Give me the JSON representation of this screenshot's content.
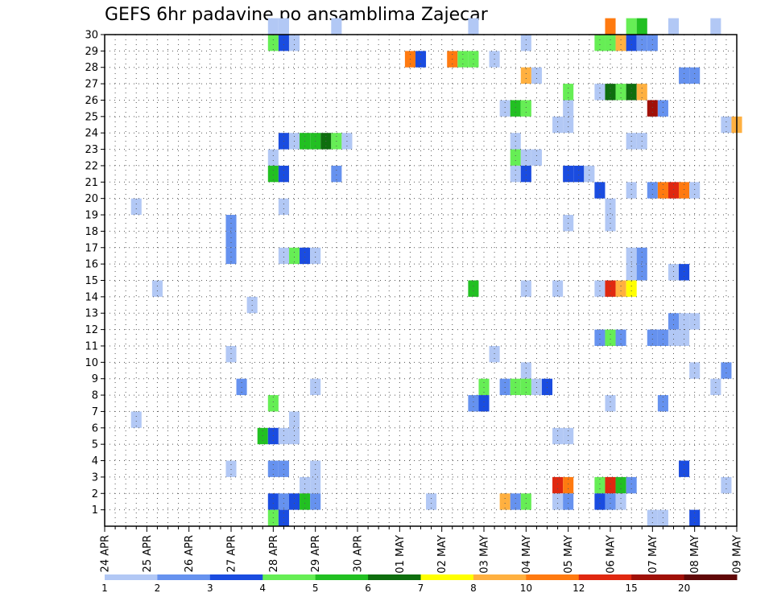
{
  "chart_data": {
    "type": "heatmap",
    "title": "GEFS 6hr padavine po ansamblima Zajecar",
    "x_tick_labels": [
      "24 APR",
      "25 APR",
      "26 APR",
      "27 APR",
      "28 APR",
      "29 APR",
      "30 APR",
      "01 MAY",
      "02 MAY",
      "03 MAY",
      "04 MAY",
      "05 MAY",
      "06 MAY",
      "07 MAY",
      "08 MAY",
      "09 MAY"
    ],
    "y_tick_labels": [
      "1",
      "2",
      "3",
      "4",
      "5",
      "6",
      "7",
      "8",
      "9",
      "10",
      "11",
      "12",
      "13",
      "14",
      "15",
      "16",
      "17",
      "18",
      "19",
      "20",
      "21",
      "22",
      "23",
      "24",
      "25",
      "26",
      "27",
      "28",
      "29",
      "30"
    ],
    "x_range": [
      0,
      60
    ],
    "y_range": [
      0,
      30
    ],
    "steps_per_day": 4,
    "grid": true,
    "colorbar": {
      "position": "bottom",
      "labels": [
        "1",
        "2",
        "3",
        "4",
        "5",
        "6",
        "7",
        "8",
        "10",
        "12",
        "15",
        "20"
      ],
      "colors": [
        "#b2c8f5",
        "#6692ef",
        "#1a4ce0",
        "#66ee55",
        "#22c022",
        "#0e6e0e",
        "#ffff00",
        "#ffb040",
        "#ff7a10",
        "#e02810",
        "#a01008",
        "#600808"
      ]
    },
    "cells": [
      [
        16,
        30,
        1
      ],
      [
        17,
        30,
        1
      ],
      [
        22,
        30,
        1
      ],
      [
        35,
        30,
        1
      ],
      [
        48,
        30,
        9
      ],
      [
        50,
        30,
        4
      ],
      [
        51,
        30,
        5
      ],
      [
        54,
        30,
        1
      ],
      [
        58,
        30,
        1
      ],
      [
        16,
        29,
        4
      ],
      [
        17,
        29,
        3
      ],
      [
        18,
        29,
        1
      ],
      [
        40,
        29,
        1
      ],
      [
        47,
        29,
        4
      ],
      [
        48,
        29,
        4
      ],
      [
        49,
        29,
        8
      ],
      [
        50,
        29,
        3
      ],
      [
        51,
        29,
        2
      ],
      [
        52,
        29,
        2
      ],
      [
        29,
        28,
        9
      ],
      [
        30,
        28,
        3
      ],
      [
        33,
        28,
        9
      ],
      [
        34,
        28,
        4
      ],
      [
        35,
        28,
        4
      ],
      [
        37,
        28,
        1
      ],
      [
        40,
        27,
        8
      ],
      [
        41,
        27,
        1
      ],
      [
        55,
        27,
        2
      ],
      [
        56,
        27,
        2
      ],
      [
        44,
        26,
        4
      ],
      [
        47,
        26,
        1
      ],
      [
        48,
        26,
        6
      ],
      [
        49,
        26,
        4
      ],
      [
        50,
        26,
        6
      ],
      [
        51,
        26,
        8
      ],
      [
        38,
        25,
        1
      ],
      [
        39,
        25,
        5
      ],
      [
        40,
        25,
        4
      ],
      [
        44,
        25,
        1
      ],
      [
        52,
        25,
        11
      ],
      [
        53,
        25,
        2
      ],
      [
        43,
        24,
        1
      ],
      [
        44,
        24,
        1
      ],
      [
        59,
        24,
        1
      ],
      [
        60,
        24,
        8
      ],
      [
        17,
        23,
        3
      ],
      [
        18,
        23,
        1
      ],
      [
        19,
        23,
        5
      ],
      [
        20,
        23,
        5
      ],
      [
        21,
        23,
        6
      ],
      [
        22,
        23,
        4
      ],
      [
        23,
        23,
        1
      ],
      [
        39,
        23,
        1
      ],
      [
        50,
        23,
        1
      ],
      [
        51,
        23,
        1
      ],
      [
        16,
        22,
        1
      ],
      [
        39,
        22,
        4
      ],
      [
        40,
        22,
        1
      ],
      [
        41,
        22,
        1
      ],
      [
        16,
        21,
        5
      ],
      [
        17,
        21,
        3
      ],
      [
        22,
        21,
        2
      ],
      [
        39,
        21,
        1
      ],
      [
        40,
        21,
        3
      ],
      [
        44,
        21,
        3
      ],
      [
        45,
        21,
        3
      ],
      [
        46,
        21,
        1
      ],
      [
        47,
        20,
        3
      ],
      [
        50,
        20,
        1
      ],
      [
        52,
        20,
        2
      ],
      [
        53,
        20,
        9
      ],
      [
        54,
        20,
        10
      ],
      [
        55,
        20,
        9
      ],
      [
        56,
        20,
        1
      ],
      [
        3,
        19,
        1
      ],
      [
        17,
        19,
        1
      ],
      [
        48,
        19,
        1
      ],
      [
        12,
        18,
        2
      ],
      [
        44,
        18,
        1
      ],
      [
        48,
        18,
        1
      ],
      [
        12,
        17,
        2
      ],
      [
        12,
        16,
        2
      ],
      [
        17,
        16,
        1
      ],
      [
        18,
        16,
        4
      ],
      [
        19,
        16,
        3
      ],
      [
        20,
        16,
        1
      ],
      [
        50,
        16,
        1
      ],
      [
        51,
        16,
        2
      ],
      [
        50,
        15,
        1
      ],
      [
        51,
        15,
        2
      ],
      [
        54,
        15,
        1
      ],
      [
        55,
        15,
        3
      ],
      [
        5,
        14,
        1
      ],
      [
        35,
        14,
        5
      ],
      [
        40,
        14,
        1
      ],
      [
        43,
        14,
        1
      ],
      [
        47,
        14,
        1
      ],
      [
        48,
        14,
        10
      ],
      [
        49,
        14,
        8
      ],
      [
        50,
        14,
        7
      ],
      [
        14,
        13,
        1
      ],
      [
        54,
        12,
        2
      ],
      [
        55,
        12,
        1
      ],
      [
        56,
        12,
        1
      ],
      [
        47,
        11,
        2
      ],
      [
        48,
        11,
        4
      ],
      [
        49,
        11,
        2
      ],
      [
        52,
        11,
        2
      ],
      [
        53,
        11,
        2
      ],
      [
        54,
        11,
        1
      ],
      [
        55,
        11,
        1
      ],
      [
        12,
        10,
        1
      ],
      [
        37,
        10,
        1
      ],
      [
        40,
        9,
        1
      ],
      [
        56,
        9,
        1
      ],
      [
        59,
        9,
        2
      ],
      [
        13,
        8,
        2
      ],
      [
        20,
        8,
        1
      ],
      [
        36,
        8,
        4
      ],
      [
        38,
        8,
        2
      ],
      [
        39,
        8,
        4
      ],
      [
        40,
        8,
        4
      ],
      [
        41,
        8,
        1
      ],
      [
        42,
        8,
        3
      ],
      [
        58,
        8,
        1
      ],
      [
        16,
        7,
        4
      ],
      [
        35,
        7,
        2
      ],
      [
        36,
        7,
        3
      ],
      [
        48,
        7,
        1
      ],
      [
        53,
        7,
        2
      ],
      [
        3,
        6,
        1
      ],
      [
        18,
        6,
        1
      ],
      [
        15,
        5,
        5
      ],
      [
        16,
        5,
        3
      ],
      [
        17,
        5,
        1
      ],
      [
        18,
        5,
        1
      ],
      [
        43,
        5,
        1
      ],
      [
        44,
        5,
        1
      ],
      [
        12,
        3,
        1
      ],
      [
        16,
        3,
        2
      ],
      [
        17,
        3,
        2
      ],
      [
        20,
        3,
        1
      ],
      [
        55,
        3,
        3
      ],
      [
        19,
        2,
        1
      ],
      [
        20,
        2,
        1
      ],
      [
        43,
        2,
        10
      ],
      [
        44,
        2,
        9
      ],
      [
        47,
        2,
        4
      ],
      [
        48,
        2,
        10
      ],
      [
        49,
        2,
        5
      ],
      [
        50,
        2,
        2
      ],
      [
        59,
        2,
        1
      ],
      [
        16,
        1,
        3
      ],
      [
        17,
        1,
        2
      ],
      [
        18,
        1,
        3
      ],
      [
        19,
        1,
        5
      ],
      [
        20,
        1,
        2
      ],
      [
        31,
        1,
        1
      ],
      [
        38,
        1,
        8
      ],
      [
        39,
        1,
        2
      ],
      [
        40,
        1,
        4
      ],
      [
        43,
        1,
        1
      ],
      [
        44,
        1,
        2
      ],
      [
        47,
        1,
        3
      ],
      [
        48,
        1,
        2
      ],
      [
        49,
        1,
        1
      ],
      [
        16,
        0,
        4
      ],
      [
        17,
        0,
        3
      ],
      [
        52,
        0,
        1
      ],
      [
        53,
        0,
        1
      ],
      [
        56,
        0,
        3
      ]
    ]
  }
}
